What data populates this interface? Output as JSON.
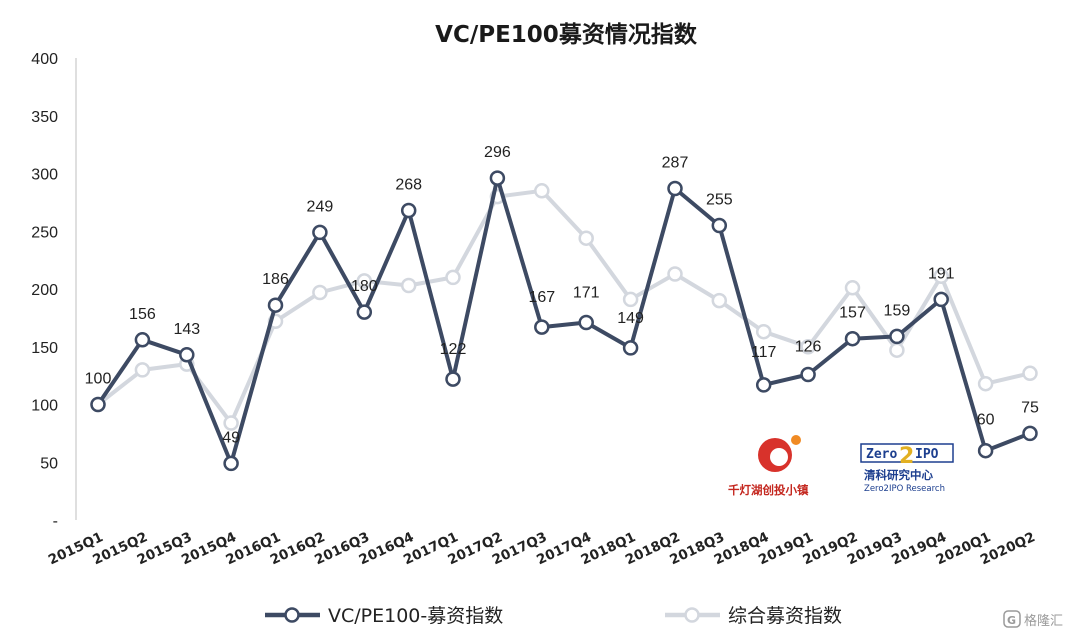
{
  "chart_data": {
    "type": "line",
    "title": "VC/PE100募资情况指数",
    "categories": [
      "2015Q1",
      "2015Q2",
      "2015Q3",
      "2015Q4",
      "2016Q1",
      "2016Q2",
      "2016Q3",
      "2016Q4",
      "2017Q1",
      "2017Q2",
      "2017Q3",
      "2017Q4",
      "2018Q1",
      "2018Q2",
      "2018Q3",
      "2018Q4",
      "2019Q1",
      "2019Q2",
      "2019Q3",
      "2019Q4",
      "2020Q1",
      "2020Q2"
    ],
    "yticks": [
      "-",
      "50",
      "100",
      "150",
      "200",
      "250",
      "300",
      "350",
      "400"
    ],
    "ylim": [
      0,
      400
    ],
    "series": [
      {
        "name": "VC/PE100-募资指数",
        "color": "#3d4a63",
        "values": [
          100,
          156,
          143,
          49,
          186,
          249,
          180,
          268,
          122,
          296,
          167,
          171,
          149,
          287,
          255,
          117,
          126,
          157,
          159,
          191,
          60,
          75
        ],
        "labels": [
          "100",
          "156",
          "143",
          "49",
          "186",
          "249",
          "180",
          "268",
          "122",
          "296",
          "167",
          "171",
          "149",
          "287",
          "255",
          "117",
          "126",
          "157",
          "159",
          "191",
          "60",
          "75"
        ]
      },
      {
        "name": "综合募资指数",
        "color": "#d3d7de",
        "values": [
          100,
          130,
          135,
          84,
          172,
          197,
          207,
          203,
          210,
          280,
          285,
          244,
          191,
          213,
          190,
          163,
          150,
          201,
          147,
          211,
          118,
          127
        ]
      }
    ],
    "legend_position": "bottom",
    "grid": false
  },
  "logos": {
    "qiandeng": {
      "text": "千灯湖创投小镇"
    },
    "zero2ipo": {
      "text": "清科研究中心",
      "sub": "Zero2IPO Research"
    }
  },
  "watermark": {
    "text": "格隆汇"
  }
}
